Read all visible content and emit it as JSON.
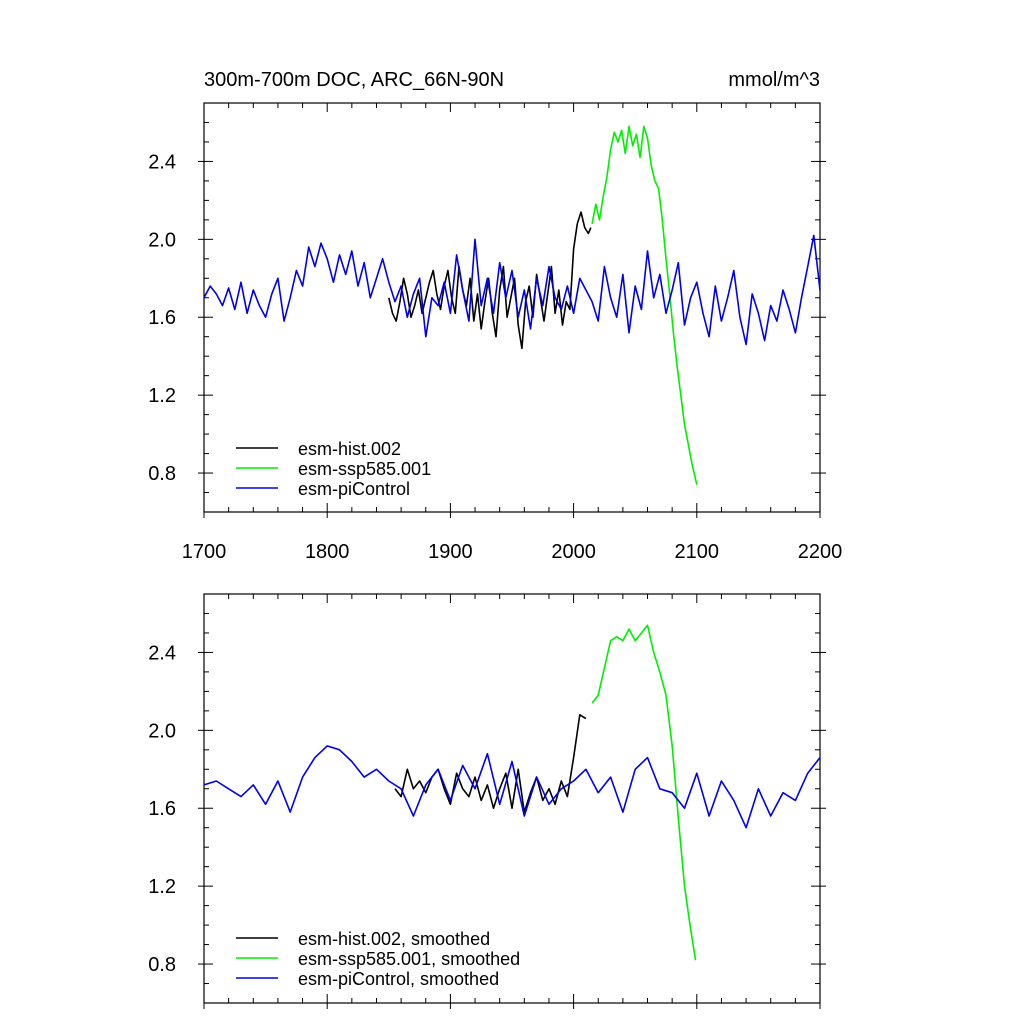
{
  "figure": {
    "title_left": "300m-700m DOC, ARC_66N-90N",
    "title_right": "mmol/m^3"
  },
  "chart_data": [
    {
      "type": "line",
      "panel": "top",
      "title": "300m-700m DOC, ARC_66N-90N",
      "units": "mmol/m^3",
      "xlim": [
        1700,
        2200
      ],
      "ylim": [
        0.6,
        2.7
      ],
      "xticks": [
        1700,
        1800,
        1900,
        2000,
        2100,
        2200
      ],
      "xtick_labels": [
        "1700",
        "1800",
        "1900",
        "2000",
        "2100",
        "2200"
      ],
      "yticks": [
        0.8,
        1.2,
        1.6,
        2.0,
        2.4
      ],
      "ytick_labels": [
        "0.8",
        "1.2",
        "1.6",
        "2.0",
        "2.4"
      ],
      "legend_position": "bottom-left",
      "series": [
        {
          "name": "esm-hist.002",
          "color": "#000000",
          "x": [
            1850,
            1853,
            1856,
            1859,
            1862,
            1865,
            1868,
            1871,
            1874,
            1877,
            1880,
            1883,
            1886,
            1889,
            1892,
            1895,
            1898,
            1901,
            1904,
            1907,
            1910,
            1913,
            1916,
            1919,
            1922,
            1925,
            1928,
            1931,
            1934,
            1937,
            1940,
            1943,
            1946,
            1949,
            1952,
            1955,
            1958,
            1961,
            1964,
            1967,
            1970,
            1973,
            1976,
            1979,
            1982,
            1985,
            1988,
            1991,
            1994,
            1997,
            2000,
            2003,
            2006,
            2009,
            2012,
            2014
          ],
          "y": [
            1.7,
            1.62,
            1.58,
            1.68,
            1.8,
            1.72,
            1.6,
            1.66,
            1.74,
            1.62,
            1.7,
            1.78,
            1.84,
            1.72,
            1.64,
            1.76,
            1.84,
            1.7,
            1.62,
            1.86,
            1.74,
            1.66,
            1.8,
            1.58,
            1.72,
            1.54,
            1.68,
            1.8,
            1.62,
            1.5,
            1.74,
            1.86,
            1.6,
            1.7,
            1.8,
            1.56,
            1.44,
            1.68,
            1.76,
            1.6,
            1.82,
            1.7,
            1.58,
            1.72,
            1.86,
            1.62,
            1.74,
            1.56,
            1.68,
            1.64,
            1.95,
            2.08,
            2.14,
            2.06,
            2.03,
            2.06
          ]
        },
        {
          "name": "esm-ssp585.001",
          "color": "#00ee00",
          "x": [
            2015,
            2018,
            2021,
            2024,
            2027,
            2030,
            2033,
            2036,
            2039,
            2042,
            2045,
            2048,
            2051,
            2054,
            2057,
            2060,
            2063,
            2066,
            2069,
            2072,
            2075,
            2078,
            2081,
            2084,
            2087,
            2090,
            2093,
            2096,
            2100
          ],
          "y": [
            2.08,
            2.18,
            2.1,
            2.22,
            2.32,
            2.46,
            2.55,
            2.5,
            2.56,
            2.44,
            2.58,
            2.48,
            2.54,
            2.42,
            2.58,
            2.52,
            2.38,
            2.3,
            2.26,
            2.1,
            1.9,
            1.72,
            1.52,
            1.35,
            1.2,
            1.05,
            0.95,
            0.85,
            0.74
          ]
        },
        {
          "name": "esm-piControl",
          "color": "#0000ee",
          "x": [
            1700,
            1705,
            1710,
            1715,
            1720,
            1725,
            1730,
            1735,
            1740,
            1745,
            1750,
            1755,
            1760,
            1765,
            1770,
            1775,
            1780,
            1785,
            1790,
            1795,
            1800,
            1805,
            1810,
            1815,
            1820,
            1825,
            1830,
            1835,
            1840,
            1845,
            1850,
            1855,
            1860,
            1865,
            1870,
            1875,
            1880,
            1885,
            1890,
            1895,
            1900,
            1905,
            1910,
            1915,
            1920,
            1925,
            1930,
            1935,
            1940,
            1945,
            1950,
            1955,
            1960,
            1965,
            1970,
            1975,
            1980,
            1985,
            1990,
            1995,
            2000,
            2005,
            2010,
            2015,
            2020,
            2025,
            2030,
            2035,
            2040,
            2045,
            2050,
            2055,
            2060,
            2065,
            2070,
            2075,
            2080,
            2085,
            2090,
            2095,
            2100,
            2105,
            2110,
            2115,
            2120,
            2125,
            2130,
            2135,
            2140,
            2145,
            2150,
            2155,
            2160,
            2165,
            2170,
            2175,
            2180,
            2185,
            2190,
            2195,
            2200
          ],
          "y": [
            1.7,
            1.76,
            1.72,
            1.66,
            1.75,
            1.64,
            1.78,
            1.62,
            1.74,
            1.66,
            1.6,
            1.72,
            1.8,
            1.58,
            1.7,
            1.84,
            1.76,
            1.96,
            1.86,
            1.98,
            1.9,
            1.78,
            1.92,
            1.82,
            1.94,
            1.76,
            1.88,
            1.7,
            1.8,
            1.9,
            1.78,
            1.68,
            1.76,
            1.6,
            1.72,
            1.8,
            1.5,
            1.7,
            1.66,
            1.78,
            1.62,
            1.92,
            1.74,
            1.58,
            2.0,
            1.66,
            1.8,
            1.62,
            1.88,
            1.7,
            1.84,
            1.6,
            1.74,
            1.54,
            1.8,
            1.66,
            1.86,
            1.7,
            1.64,
            1.76,
            1.62,
            1.8,
            1.74,
            1.68,
            1.58,
            1.86,
            1.7,
            1.6,
            1.82,
            1.52,
            1.76,
            1.64,
            1.94,
            1.7,
            1.82,
            1.62,
            1.74,
            1.88,
            1.56,
            1.7,
            1.78,
            1.62,
            1.5,
            1.76,
            1.58,
            1.7,
            1.84,
            1.6,
            1.46,
            1.72,
            1.62,
            1.48,
            1.66,
            1.58,
            1.74,
            1.64,
            1.52,
            1.7,
            1.86,
            2.02,
            1.74
          ]
        }
      ]
    },
    {
      "type": "line",
      "panel": "bottom",
      "xlim": [
        1700,
        2200
      ],
      "ylim": [
        0.6,
        2.7
      ],
      "xticks": [
        1700,
        1800,
        1900,
        2000,
        2100,
        2200
      ],
      "yticks": [
        0.8,
        1.2,
        1.6,
        2.0,
        2.4
      ],
      "ytick_labels": [
        "0.8",
        "1.2",
        "1.6",
        "2.0",
        "2.4"
      ],
      "legend_position": "bottom-left",
      "series": [
        {
          "name": "esm-hist.002, smoothed",
          "color": "#000000",
          "x": [
            1855,
            1860,
            1865,
            1870,
            1875,
            1880,
            1885,
            1890,
            1895,
            1900,
            1905,
            1910,
            1915,
            1920,
            1925,
            1930,
            1935,
            1940,
            1945,
            1950,
            1955,
            1960,
            1965,
            1970,
            1975,
            1980,
            1985,
            1990,
            1995,
            2000,
            2005,
            2010
          ],
          "y": [
            1.7,
            1.66,
            1.8,
            1.7,
            1.74,
            1.68,
            1.76,
            1.8,
            1.7,
            1.62,
            1.78,
            1.7,
            1.66,
            1.76,
            1.64,
            1.72,
            1.6,
            1.7,
            1.78,
            1.6,
            1.8,
            1.58,
            1.68,
            1.76,
            1.64,
            1.7,
            1.62,
            1.74,
            1.66,
            1.86,
            2.08,
            2.06
          ]
        },
        {
          "name": "esm-ssp585.001, smoothed",
          "color": "#00ee00",
          "x": [
            2015,
            2020,
            2025,
            2030,
            2035,
            2040,
            2045,
            2050,
            2055,
            2060,
            2065,
            2070,
            2075,
            2080,
            2085,
            2090,
            2095,
            2099
          ],
          "y": [
            2.14,
            2.18,
            2.32,
            2.46,
            2.48,
            2.46,
            2.52,
            2.46,
            2.5,
            2.54,
            2.4,
            2.3,
            2.18,
            1.92,
            1.55,
            1.2,
            0.98,
            0.82
          ]
        },
        {
          "name": "esm-piControl, smoothed",
          "color": "#0000ee",
          "x": [
            1700,
            1710,
            1720,
            1730,
            1740,
            1750,
            1760,
            1770,
            1780,
            1790,
            1800,
            1810,
            1820,
            1830,
            1840,
            1850,
            1860,
            1870,
            1880,
            1890,
            1900,
            1910,
            1920,
            1930,
            1940,
            1950,
            1960,
            1970,
            1980,
            1990,
            2000,
            2010,
            2020,
            2030,
            2040,
            2050,
            2060,
            2070,
            2080,
            2090,
            2100,
            2110,
            2120,
            2130,
            2140,
            2150,
            2160,
            2170,
            2180,
            2190,
            2200
          ],
          "y": [
            1.72,
            1.74,
            1.7,
            1.66,
            1.72,
            1.62,
            1.74,
            1.58,
            1.76,
            1.86,
            1.92,
            1.9,
            1.84,
            1.76,
            1.8,
            1.74,
            1.7,
            1.56,
            1.72,
            1.8,
            1.64,
            1.82,
            1.7,
            1.88,
            1.62,
            1.84,
            1.56,
            1.76,
            1.62,
            1.7,
            1.74,
            1.8,
            1.68,
            1.76,
            1.58,
            1.8,
            1.86,
            1.7,
            1.68,
            1.6,
            1.78,
            1.56,
            1.74,
            1.64,
            1.5,
            1.7,
            1.56,
            1.68,
            1.64,
            1.78,
            1.86
          ]
        }
      ]
    }
  ]
}
